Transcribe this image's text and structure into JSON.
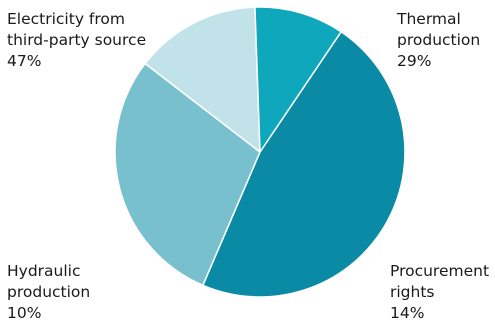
{
  "chart_data": {
    "type": "pie",
    "title": "",
    "slices": [
      {
        "label_lines": [
          "Electricity from",
          "third-party source"
        ],
        "value": 47,
        "value_text": "47%",
        "color": "#0a8aa4"
      },
      {
        "label_lines": [
          "Thermal",
          "production"
        ],
        "value": 29,
        "value_text": "29%",
        "color": "#79c0cf"
      },
      {
        "label_lines": [
          "Procurement",
          "rights"
        ],
        "value": 14,
        "value_text": "14%",
        "color": "#c1e2e8"
      },
      {
        "label_lines": [
          "Hydraulic",
          "production"
        ],
        "value": 10,
        "value_text": "10%",
        "color": "#0fa7bb"
      }
    ],
    "legend": "none",
    "start_angle_deg": 34,
    "direction": "clockwise"
  }
}
